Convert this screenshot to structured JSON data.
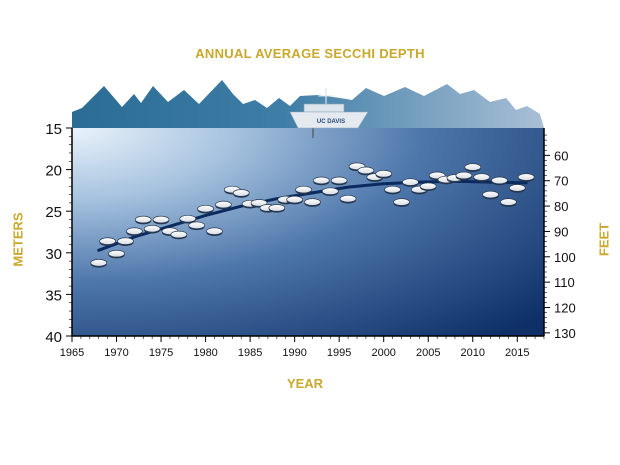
{
  "chart_data": {
    "type": "scatter",
    "title": "ANNUAL AVERAGE SECCHI DEPTH",
    "xlabel": "YEAR",
    "ylabel": "METERS",
    "y2label": "FEET",
    "xlim": [
      1965,
      2018
    ],
    "ylim": [
      15,
      40
    ],
    "y_inverted": true,
    "y2lim_ft": [
      49.2,
      131.2
    ],
    "x_ticks": [
      "1965",
      "1970",
      "1975",
      "1980",
      "1985",
      "1990",
      "1995",
      "2000",
      "2005",
      "2010",
      "2015"
    ],
    "y_ticks": [
      "15",
      "20",
      "25",
      "30",
      "35",
      "40"
    ],
    "y2_ticks": [
      "60",
      "70",
      "80",
      "90",
      "100",
      "110",
      "120",
      "130"
    ],
    "series": [
      {
        "x": [
          1968,
          1969,
          1970,
          1971,
          1972,
          1973,
          1974,
          1975,
          1976,
          1977,
          1978,
          1979,
          1980,
          1981,
          1982,
          1983,
          1984,
          1985,
          1986,
          1987,
          1988,
          1989,
          1990,
          1991,
          1992,
          1993,
          1994,
          1995,
          1996,
          1997,
          1998,
          1999,
          2000,
          2001,
          2002,
          2003,
          2004,
          2005,
          2006,
          2007,
          2008,
          2009,
          2010,
          2011,
          2012,
          2013,
          2014,
          2015,
          2016
        ],
        "y": [
          31.2,
          28.6,
          30.1,
          28.6,
          27.4,
          26.0,
          27.1,
          26.0,
          27.4,
          27.8,
          25.9,
          26.7,
          24.7,
          27.4,
          24.2,
          22.4,
          22.8,
          24.1,
          24.0,
          24.6,
          24.6,
          23.6,
          23.6,
          22.4,
          23.9,
          21.3,
          22.6,
          21.3,
          23.5,
          19.6,
          20.1,
          20.9,
          20.5,
          22.4,
          23.9,
          21.5,
          22.4,
          22.0,
          20.7,
          21.2,
          21.0,
          20.7,
          19.7,
          20.9,
          23.0,
          21.3,
          23.9,
          22.2,
          20.9
        ]
      }
    ],
    "trend": {
      "x": [
        1968,
        1972,
        1976,
        1980,
        1984,
        1988,
        1992,
        1996,
        2000,
        2004,
        2008,
        2012,
        2016
      ],
      "y": [
        29.7,
        28.1,
        26.8,
        25.5,
        24.4,
        23.5,
        22.8,
        22.1,
        21.7,
        21.5,
        21.4,
        21.5,
        21.6
      ]
    }
  },
  "boat_logo_text": "UC DAVIS"
}
